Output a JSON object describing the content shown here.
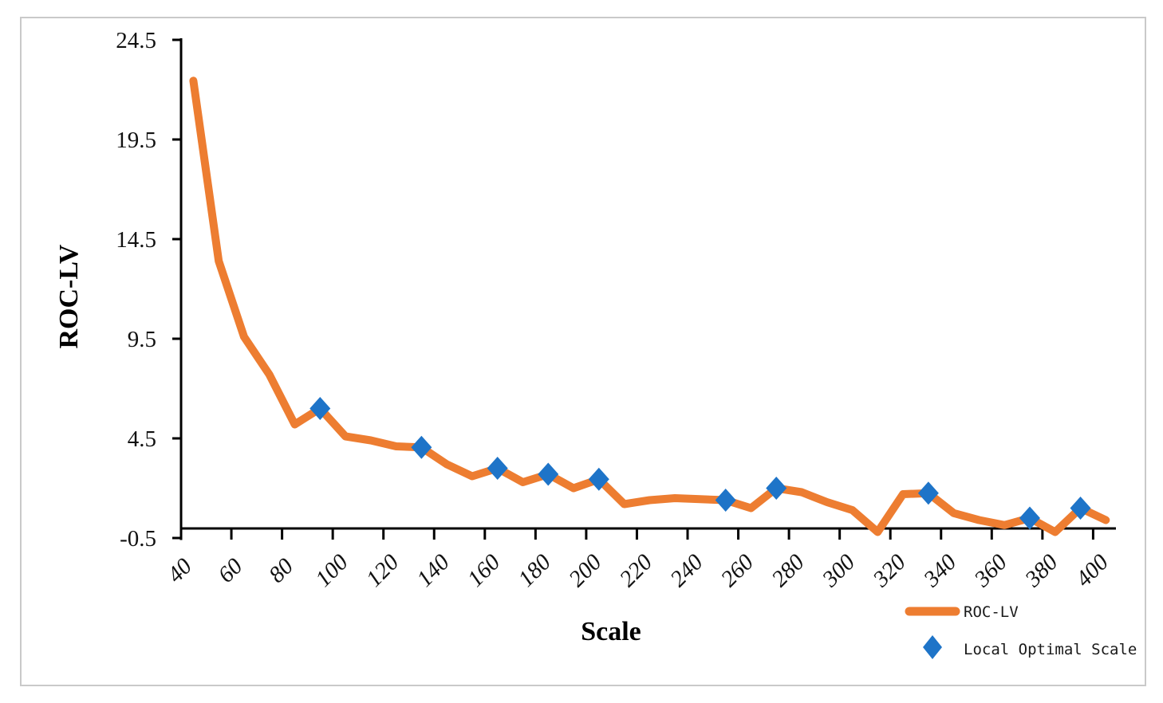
{
  "figure": {
    "background": "#ffffff",
    "border_color": "#c9c9c9"
  },
  "chart_data": {
    "type": "line",
    "title": "",
    "xlabel": "Scale",
    "ylabel": "ROC-LV",
    "grid": false,
    "ylim": [
      -0.5,
      24.5
    ],
    "yticks": [
      24.5,
      19.5,
      14.5,
      9.5,
      4.5,
      -0.5
    ],
    "xticks": [
      40,
      60,
      80,
      100,
      120,
      140,
      160,
      180,
      200,
      220,
      240,
      260,
      280,
      300,
      320,
      340,
      360,
      380,
      400
    ],
    "x": [
      40,
      50,
      60,
      70,
      80,
      90,
      100,
      110,
      120,
      130,
      140,
      150,
      160,
      170,
      180,
      190,
      200,
      210,
      220,
      230,
      240,
      250,
      260,
      270,
      280,
      290,
      300,
      310,
      320,
      330,
      340,
      350,
      360,
      370,
      380,
      390,
      400
    ],
    "series": [
      {
        "name": "ROC-LV",
        "color": "#ED7D31",
        "values": [
          22.45,
          13.4,
          9.6,
          7.7,
          5.2,
          6.0,
          4.6,
          4.4,
          4.1,
          4.05,
          3.2,
          2.6,
          3.0,
          2.3,
          2.7,
          2.0,
          2.45,
          1.2,
          1.4,
          1.5,
          1.45,
          1.4,
          1.0,
          2.0,
          1.8,
          1.3,
          0.9,
          -0.2,
          1.7,
          1.75,
          0.75,
          0.4,
          0.15,
          0.5,
          -0.2,
          1.0,
          0.4
        ]
      }
    ],
    "markers": {
      "name": "Local Optimal Scale",
      "color": "#1E74C8",
      "shape": "diamond",
      "points": [
        {
          "x": 90,
          "y": 6.0
        },
        {
          "x": 130,
          "y": 4.05
        },
        {
          "x": 160,
          "y": 3.0
        },
        {
          "x": 180,
          "y": 2.7
        },
        {
          "x": 200,
          "y": 2.45
        },
        {
          "x": 250,
          "y": 1.4
        },
        {
          "x": 270,
          "y": 2.0
        },
        {
          "x": 330,
          "y": 1.75
        },
        {
          "x": 370,
          "y": 0.5
        },
        {
          "x": 390,
          "y": 1.0
        }
      ]
    },
    "legend_position": "bottom-right"
  }
}
